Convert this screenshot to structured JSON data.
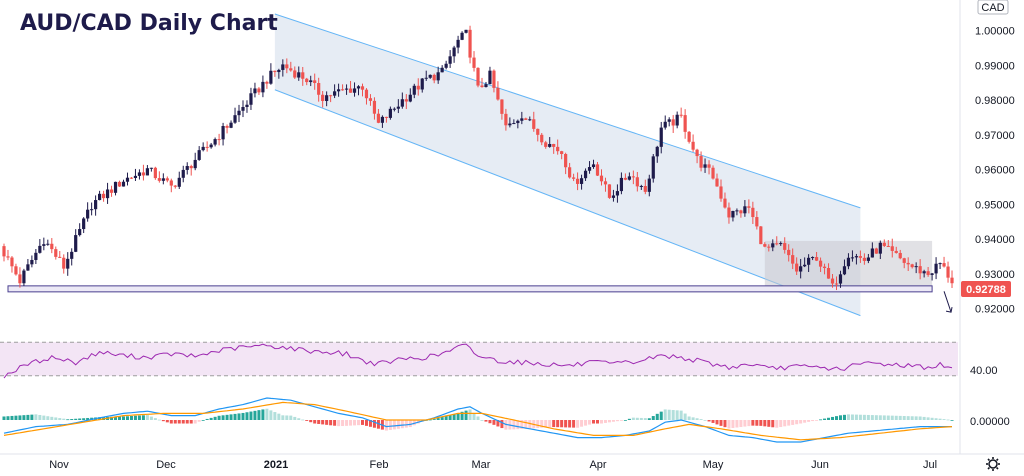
{
  "chart_data": {
    "type": "candlestick",
    "title": "AUD/CAD Daily Chart",
    "currency": "CAD",
    "price_axis": {
      "ticks": [
        "1.00000",
        "0.99000",
        "0.98000",
        "0.97000",
        "0.96000",
        "0.95000",
        "0.94000",
        "0.93000",
        "0.92000"
      ],
      "range": [
        0.9153,
        1.0048
      ]
    },
    "last_price": "0.92788",
    "x_axis": {
      "labels": [
        "Nov",
        "Dec",
        "2021",
        "Feb",
        "Mar",
        "Apr",
        "May",
        "Jun",
        "Jul"
      ]
    },
    "price_anchors": [
      [
        0,
        0.936
      ],
      [
        4,
        0.928
      ],
      [
        10,
        0.94
      ],
      [
        15,
        0.932
      ],
      [
        22,
        0.95
      ],
      [
        30,
        0.957
      ],
      [
        36,
        0.96
      ],
      [
        42,
        0.955
      ],
      [
        48,
        0.963
      ],
      [
        54,
        0.97
      ],
      [
        60,
        0.978
      ],
      [
        66,
        0.986
      ],
      [
        70,
        0.99
      ],
      [
        76,
        0.986
      ],
      [
        80,
        0.981
      ],
      [
        86,
        0.983
      ],
      [
        90,
        0.984
      ],
      [
        94,
        0.973
      ],
      [
        100,
        0.98
      ],
      [
        106,
        0.986
      ],
      [
        110,
        0.988
      ],
      [
        114,
        0.997
      ],
      [
        116,
        0.999
      ],
      [
        119,
        0.983
      ],
      [
        122,
        0.987
      ],
      [
        126,
        0.972
      ],
      [
        130,
        0.976
      ],
      [
        136,
        0.968
      ],
      [
        140,
        0.965
      ],
      [
        143,
        0.956
      ],
      [
        148,
        0.962
      ],
      [
        152,
        0.952
      ],
      [
        157,
        0.959
      ],
      [
        161,
        0.954
      ],
      [
        165,
        0.972
      ],
      [
        170,
        0.975
      ],
      [
        174,
        0.963
      ],
      [
        178,
        0.958
      ],
      [
        182,
        0.947
      ],
      [
        187,
        0.949
      ],
      [
        191,
        0.937
      ],
      [
        195,
        0.938
      ],
      [
        199,
        0.931
      ],
      [
        204,
        0.935
      ],
      [
        208,
        0.926
      ],
      [
        212,
        0.936
      ],
      [
        216,
        0.934
      ],
      [
        220,
        0.938
      ],
      [
        224,
        0.935
      ],
      [
        228,
        0.932
      ],
      [
        232,
        0.93
      ],
      [
        235,
        0.933
      ],
      [
        238,
        0.928
      ]
    ],
    "rsi": {
      "level_label": "40.00",
      "anchors": [
        [
          0,
          30
        ],
        [
          6,
          44
        ],
        [
          12,
          52
        ],
        [
          18,
          46
        ],
        [
          24,
          58
        ],
        [
          30,
          54
        ],
        [
          36,
          52
        ],
        [
          42,
          56
        ],
        [
          48,
          53
        ],
        [
          54,
          60
        ],
        [
          60,
          64
        ],
        [
          66,
          66
        ],
        [
          70,
          64
        ],
        [
          76,
          60
        ],
        [
          82,
          58
        ],
        [
          86,
          56
        ],
        [
          90,
          48
        ],
        [
          94,
          44
        ],
        [
          100,
          50
        ],
        [
          106,
          52
        ],
        [
          110,
          56
        ],
        [
          114,
          64
        ],
        [
          116,
          66
        ],
        [
          119,
          54
        ],
        [
          124,
          48
        ],
        [
          130,
          46
        ],
        [
          136,
          44
        ],
        [
          142,
          42
        ],
        [
          148,
          46
        ],
        [
          152,
          44
        ],
        [
          158,
          46
        ],
        [
          165,
          54
        ],
        [
          170,
          52
        ],
        [
          176,
          46
        ],
        [
          182,
          40
        ],
        [
          188,
          44
        ],
        [
          192,
          38
        ],
        [
          198,
          41
        ],
        [
          204,
          40
        ],
        [
          210,
          38
        ],
        [
          216,
          45
        ],
        [
          222,
          44
        ],
        [
          228,
          42
        ],
        [
          232,
          40
        ],
        [
          235,
          43
        ],
        [
          238,
          38
        ]
      ]
    },
    "macd": {
      "level_label": "0.00000",
      "macd_anchors": [
        [
          0,
          -6
        ],
        [
          8,
          -3
        ],
        [
          16,
          -2
        ],
        [
          24,
          1
        ],
        [
          30,
          3
        ],
        [
          36,
          4
        ],
        [
          42,
          2
        ],
        [
          48,
          2
        ],
        [
          54,
          5
        ],
        [
          60,
          7
        ],
        [
          66,
          10
        ],
        [
          72,
          9
        ],
        [
          78,
          6
        ],
        [
          84,
          3
        ],
        [
          90,
          1
        ],
        [
          96,
          -3
        ],
        [
          102,
          -2
        ],
        [
          108,
          1
        ],
        [
          114,
          5
        ],
        [
          117,
          6
        ],
        [
          120,
          3
        ],
        [
          126,
          -2
        ],
        [
          132,
          -4
        ],
        [
          138,
          -6
        ],
        [
          144,
          -8
        ],
        [
          150,
          -8
        ],
        [
          156,
          -7
        ],
        [
          162,
          -5
        ],
        [
          166,
          -1
        ],
        [
          170,
          0
        ],
        [
          176,
          -3
        ],
        [
          182,
          -7
        ],
        [
          188,
          -8
        ],
        [
          194,
          -10
        ],
        [
          200,
          -10
        ],
        [
          206,
          -8
        ],
        [
          212,
          -6
        ],
        [
          218,
          -5
        ],
        [
          224,
          -4
        ],
        [
          230,
          -3
        ],
        [
          238,
          -3
        ]
      ],
      "signal_anchors": [
        [
          0,
          -7
        ],
        [
          10,
          -4
        ],
        [
          20,
          -1
        ],
        [
          30,
          2
        ],
        [
          40,
          3
        ],
        [
          50,
          3
        ],
        [
          60,
          5
        ],
        [
          70,
          8
        ],
        [
          78,
          7
        ],
        [
          86,
          4
        ],
        [
          96,
          0
        ],
        [
          106,
          0
        ],
        [
          114,
          3
        ],
        [
          120,
          3
        ],
        [
          128,
          0
        ],
        [
          138,
          -4
        ],
        [
          148,
          -7
        ],
        [
          158,
          -7
        ],
        [
          166,
          -4
        ],
        [
          172,
          -2
        ],
        [
          180,
          -4
        ],
        [
          190,
          -7
        ],
        [
          200,
          -9
        ],
        [
          210,
          -8
        ],
        [
          220,
          -6
        ],
        [
          230,
          -4
        ],
        [
          238,
          -3
        ]
      ]
    },
    "colors": {
      "up": "#1e1b4b",
      "down": "#ef5350",
      "channel_fill": "#dbe4f0",
      "channel_line": "#64b5f6",
      "box_fill": "#c8c8cf",
      "support_line": "#4a3f8f",
      "rsi_line": "#9c27b0",
      "rsi_band": "#f3e5f5",
      "macd_line": "#2196f3",
      "signal_line": "#ff9800",
      "hist_pos": "#26a69a",
      "hist_pos_light": "#b2dfdb",
      "hist_neg": "#ef5350",
      "hist_neg_light": "#ffcdd2",
      "label_bg": "#ef5350"
    },
    "annotations": {
      "channel": {
        "start": {
          "x": 68,
          "upper": 1.0048,
          "lower": 0.983
        },
        "end": {
          "x": 215,
          "upper": 0.949,
          "lower": 0.918
        }
      },
      "consolidation_box": {
        "x_start": 191,
        "x_end": 233,
        "top": 0.9395,
        "bottom": 0.9255
      },
      "support_level": 0.9257,
      "breakout_arrow": {
        "x": 236,
        "from": 0.925,
        "to": 0.919
      }
    }
  }
}
